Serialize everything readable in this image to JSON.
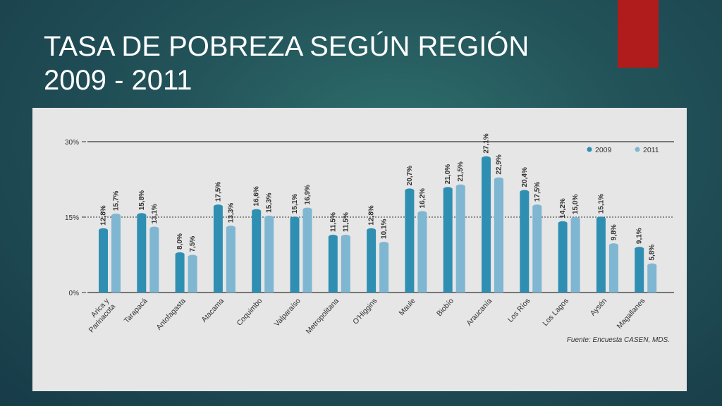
{
  "slide": {
    "title_line1": "TASA DE POBREZA SEGÚN REGIÓN",
    "title_line2": "2009 - 2011",
    "accent_color": "#b01c1c"
  },
  "chart_data": {
    "type": "bar",
    "title": "",
    "xlabel": "",
    "ylabel": "",
    "ylim": [
      0,
      30
    ],
    "yticks": [
      0,
      15,
      30
    ],
    "ytick_labels": [
      "0%",
      "15%",
      "30%"
    ],
    "grid": "dotted at 15%",
    "legend_position": "top-right",
    "categories": [
      "Arica y Parinacota",
      "Tarapacá",
      "Antofagasta",
      "Atacama",
      "Coquimbo",
      "Valparaíso",
      "Metropolitana",
      "O'Higgins",
      "Maule",
      "Biobío",
      "Araucanía",
      "Los Ríos",
      "Los Lagos",
      "Aysén",
      "Magallanes"
    ],
    "series": [
      {
        "name": "2009",
        "color": "#2f8fb3",
        "values": [
          12.8,
          15.8,
          8.0,
          17.5,
          16.6,
          15.1,
          11.5,
          12.8,
          20.7,
          21.0,
          27.1,
          20.4,
          14.2,
          15.1,
          9.1
        ],
        "labels": [
          "12,8%",
          "15,8%",
          "8,0%",
          "17,5%",
          "16,6%",
          "15,1%",
          "11,5%",
          "12,8%",
          "20,7%",
          "21,0%",
          "27,1%",
          "20,4%",
          "14,2%",
          "15,1%",
          "9,1%"
        ]
      },
      {
        "name": "2011",
        "color": "#7fb6d2",
        "values": [
          15.7,
          13.1,
          7.5,
          13.3,
          15.3,
          16.9,
          11.5,
          10.1,
          16.2,
          21.5,
          22.9,
          17.5,
          15.0,
          9.8,
          5.8
        ],
        "labels": [
          "15,7%",
          "13,1%",
          "7,5%",
          "13,3%",
          "15,3%",
          "16,9%",
          "11,5%",
          "10,1%",
          "16,2%",
          "21,5%",
          "22,9%",
          "17,5%",
          "15,0%",
          "9,8%",
          "5,8%"
        ]
      }
    ],
    "category_labels": [
      "Arica y\nParinacota",
      "Tarapacá",
      "Antofagasta",
      "Atacama",
      "Coquimbo",
      "Valparaíso",
      "Metropolitana",
      "O'Higgins",
      "Maule",
      "Biobío",
      "Araucanía",
      "Los Ríos",
      "Los Lagos",
      "Aysén",
      "Magallanes"
    ],
    "source": "Fuente: Encuesta CASEN, MDS."
  }
}
